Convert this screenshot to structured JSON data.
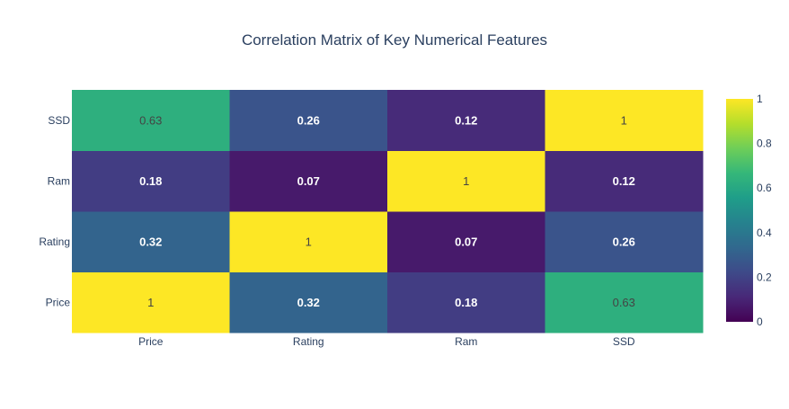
{
  "chart_data": {
    "type": "heatmap",
    "title": "Correlation Matrix of Key Numerical Features",
    "x_categories": [
      "Price",
      "Rating",
      "Ram",
      "SSD"
    ],
    "y_categories": [
      "Price",
      "Rating",
      "Ram",
      "SSD"
    ],
    "z": [
      [
        1,
        0.32,
        0.18,
        0.63
      ],
      [
        0.32,
        1,
        0.07,
        0.26
      ],
      [
        0.18,
        0.07,
        1,
        0.12
      ],
      [
        0.63,
        0.26,
        0.12,
        1
      ]
    ],
    "cell_labels": [
      [
        "1",
        "0.32",
        "0.18",
        "0.63"
      ],
      [
        "0.32",
        "1",
        "0.07",
        "0.26"
      ],
      [
        "0.18",
        "0.07",
        "1",
        "0.12"
      ],
      [
        "0.63",
        "0.26",
        "0.12",
        "1"
      ]
    ],
    "zmin": 0,
    "zmax": 1,
    "colorscale": "viridis",
    "colorbar": {
      "ticks": [
        0,
        0.2,
        0.4,
        0.6,
        0.8,
        1
      ],
      "tick_labels": [
        "0",
        "0.2",
        "0.4",
        "0.6",
        "0.8",
        "1"
      ]
    },
    "grid": false
  }
}
